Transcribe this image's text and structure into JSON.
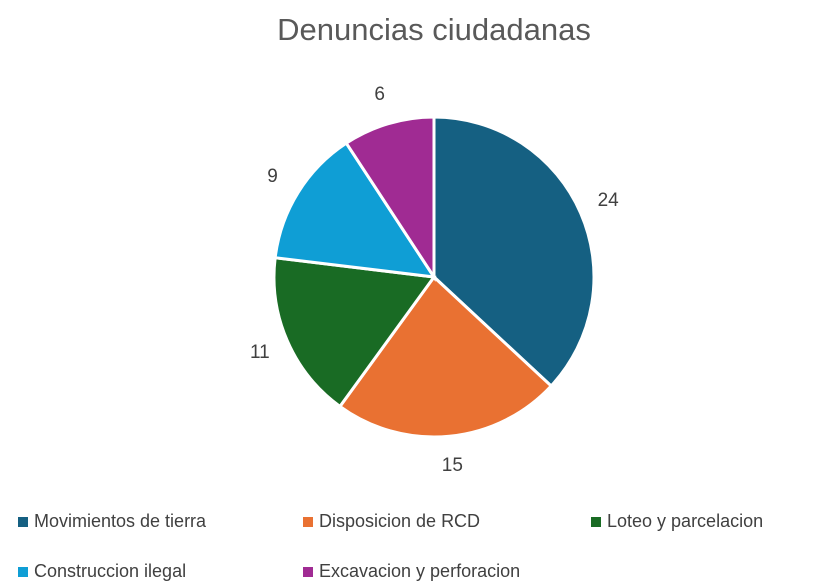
{
  "chart_data": {
    "type": "pie",
    "title": "Denuncias ciudadanas",
    "categories": [
      "Movimientos de tierra",
      "Disposicion de RCD",
      "Loteo y parcelacion",
      "Construccion ilegal",
      "Excavacion y perforacion"
    ],
    "values": [
      24,
      15,
      11,
      9,
      6
    ],
    "colors": [
      "#156082",
      "#e97132",
      "#196b24",
      "#0f9ed5",
      "#a02b93"
    ],
    "legend": "bottom"
  }
}
